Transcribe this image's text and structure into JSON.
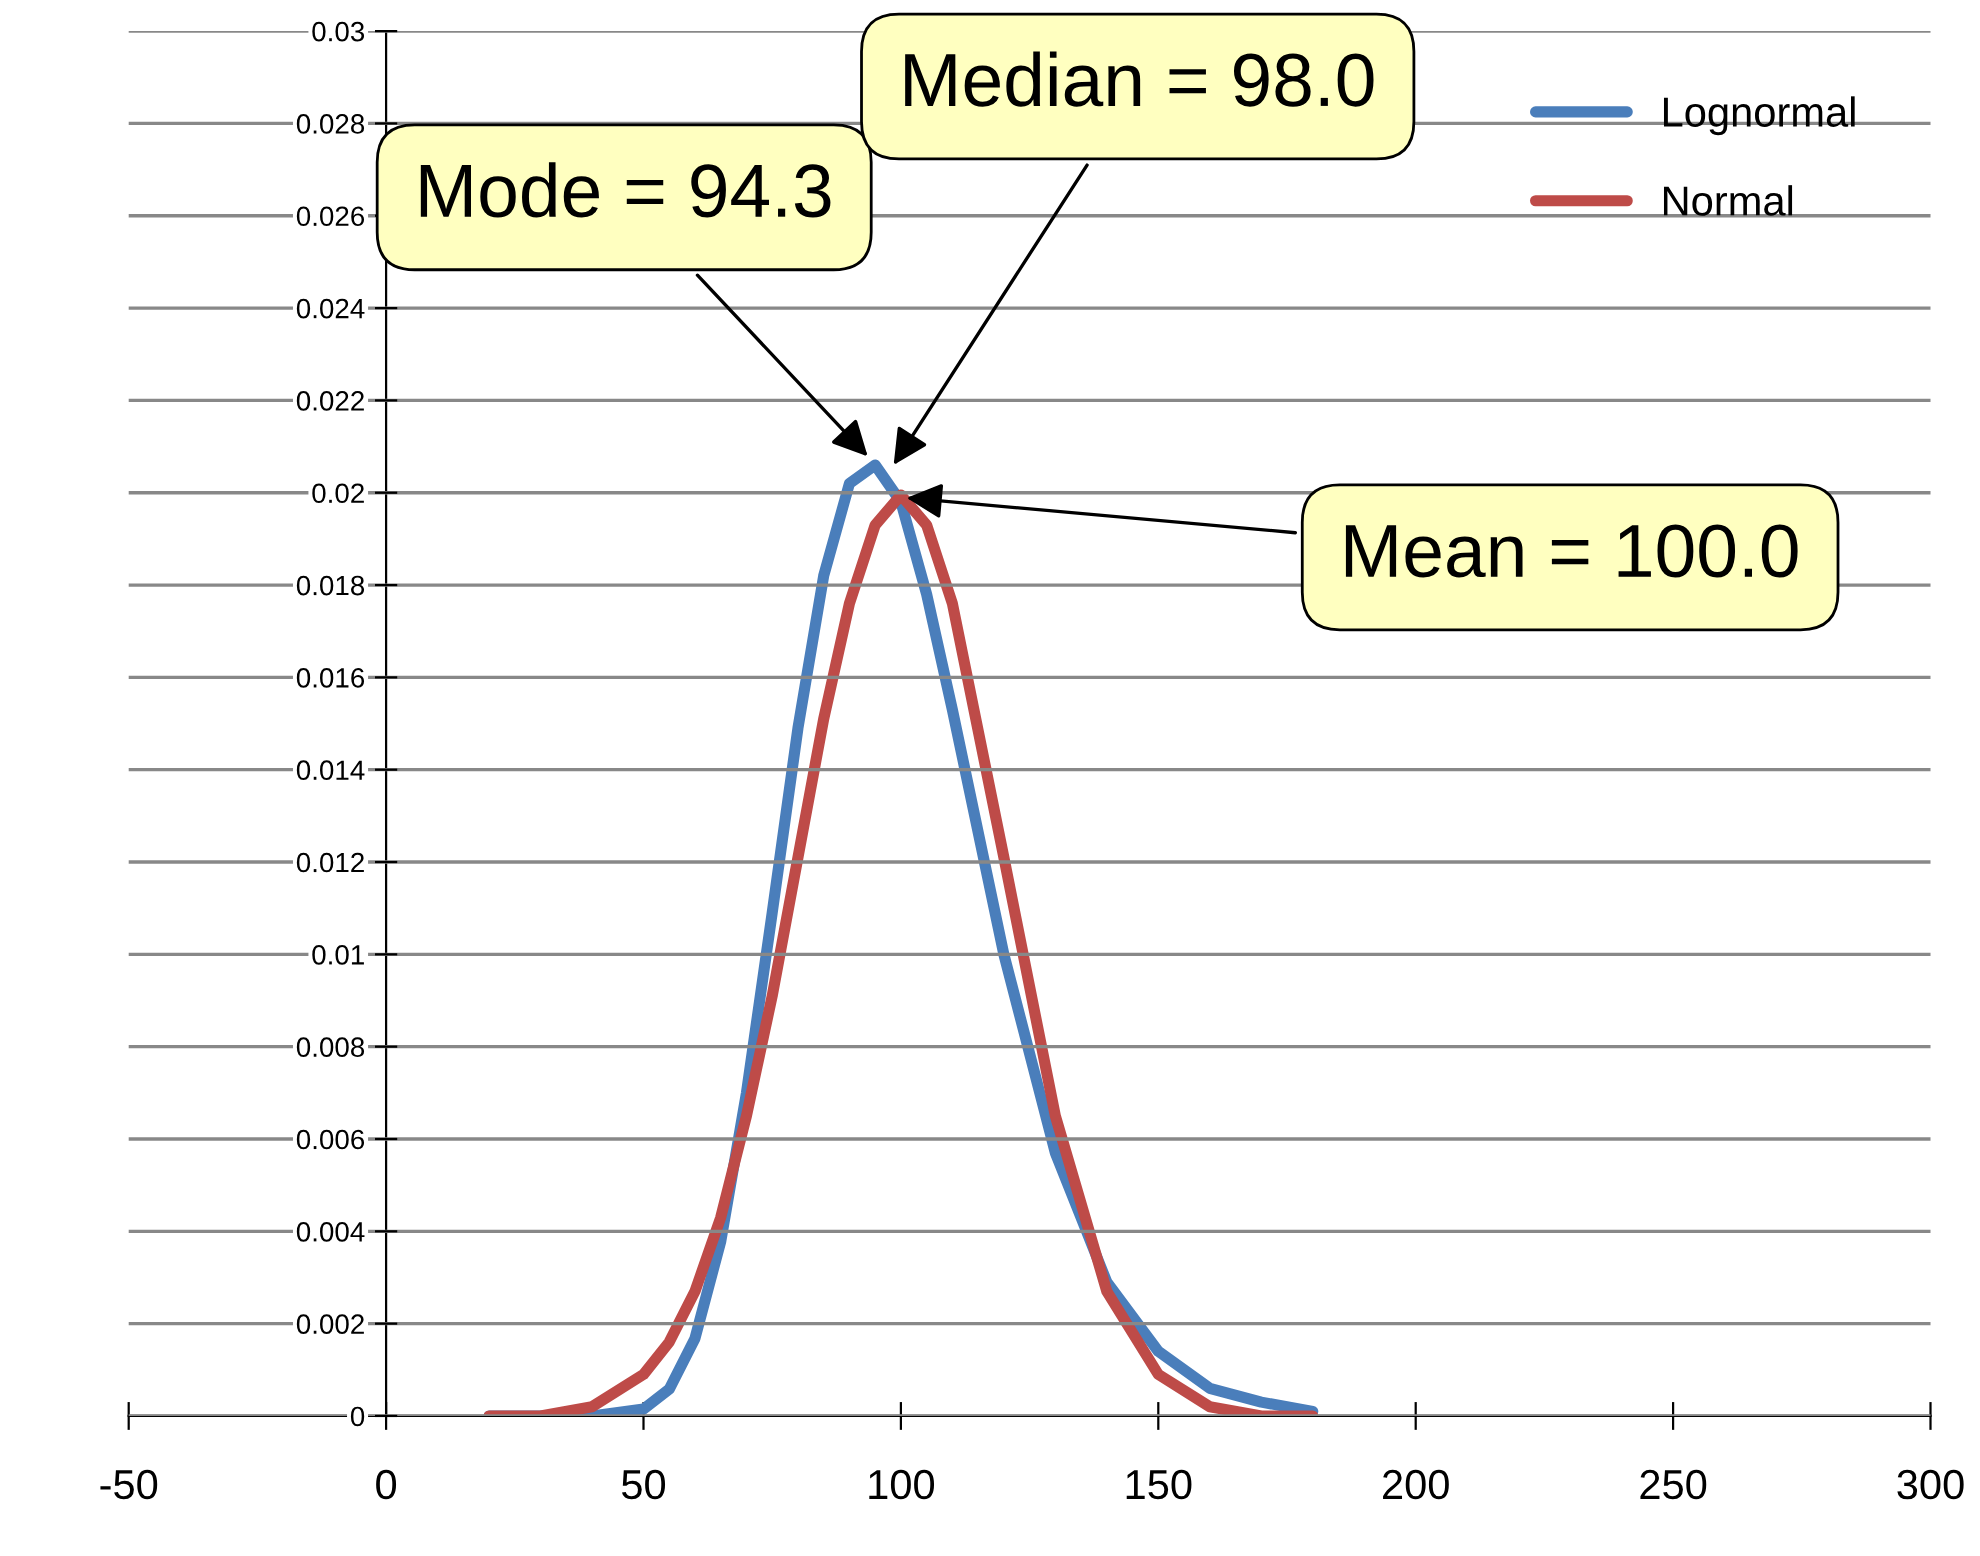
{
  "chart_data": {
    "type": "line",
    "x": [
      20,
      30,
      40,
      50,
      55,
      60,
      65,
      70,
      75,
      80,
      85,
      90,
      95,
      100,
      105,
      110,
      120,
      130,
      140,
      150,
      160,
      170,
      180
    ],
    "series": [
      {
        "name": "Lognormal",
        "color": "#4a7ebb",
        "values": [
          0,
          0,
          0,
          0.00015,
          0.00058,
          0.00168,
          0.00378,
          0.007,
          0.0109,
          0.0149,
          0.0182,
          0.0202,
          0.0206,
          0.0198,
          0.0178,
          0.0153,
          0.01,
          0.0057,
          0.0029,
          0.0014,
          0.0006,
          0.0003,
          0.0001
        ]
      },
      {
        "name": "Normal",
        "color": "#be4b48",
        "values": [
          0,
          0,
          0.0002,
          0.0009,
          0.0016,
          0.0027,
          0.0043,
          0.0065,
          0.0091,
          0.0121,
          0.0151,
          0.0176,
          0.0193,
          0.01995,
          0.0193,
          0.0176,
          0.0121,
          0.0065,
          0.0027,
          0.0009,
          0.0002,
          0,
          0
        ]
      }
    ],
    "xlim": [
      -50,
      300
    ],
    "xticks": [
      -50,
      0,
      50,
      100,
      150,
      200,
      250,
      300
    ],
    "ylim": [
      0,
      0.03
    ],
    "yticks": [
      0,
      0.002,
      0.004,
      0.006,
      0.008,
      0.01,
      0.012,
      0.014,
      0.016,
      0.018,
      0.02,
      0.022,
      0.024,
      0.026,
      0.028,
      0.03
    ],
    "grid": "y",
    "legend": "top right",
    "marker": "none",
    "line_style": "solid",
    "annotations": [
      {
        "text": "Mode = 94.3",
        "x": 94.3,
        "y": 0.0207
      },
      {
        "text": "Median = 98.0",
        "x": 98,
        "y": 0.0205
      },
      {
        "text": "Mean = 100.0",
        "x": 100,
        "y": 0.0199
      }
    ]
  }
}
